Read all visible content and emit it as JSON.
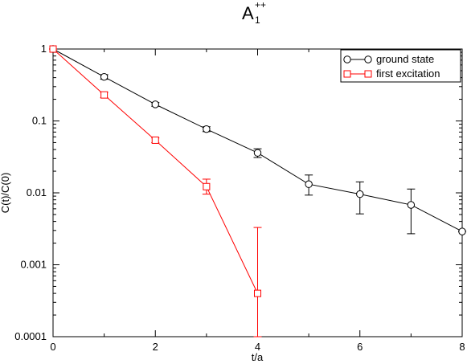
{
  "chart_data": {
    "type": "line",
    "title_main": "A",
    "title_sub": "1",
    "title_sup": "++",
    "xlabel": "t/a",
    "ylabel": "C(t)/C(0)",
    "xlim": [
      0,
      8
    ],
    "ylim": [
      0.0001,
      1
    ],
    "yscale": "log",
    "x_ticks": [
      0,
      2,
      4,
      6,
      8
    ],
    "x_tick_labels": [
      "0",
      "2",
      "4",
      "6",
      "8"
    ],
    "y_ticks": [
      0.0001,
      0.001,
      0.01,
      0.1,
      1
    ],
    "y_tick_labels": [
      "0.0001",
      "0.001",
      "0.01",
      "0.1",
      "1"
    ],
    "legend_position": "top-right",
    "series": [
      {
        "name": "ground state",
        "color": "#000000",
        "marker": "circle",
        "x": [
          0,
          1,
          2,
          3,
          4,
          5,
          6,
          7,
          8
        ],
        "y": [
          1,
          0.41,
          0.17,
          0.077,
          0.036,
          0.0132,
          0.0096,
          0.0068,
          0.0029
        ],
        "yerr_low": [
          1,
          0.38,
          0.16,
          0.071,
          0.031,
          0.0093,
          0.0051,
          0.0027,
          0.0029
        ],
        "yerr_high": [
          1,
          0.44,
          0.18,
          0.083,
          0.041,
          0.0177,
          0.0142,
          0.0113,
          0.0029
        ]
      },
      {
        "name": "first excitation",
        "color": "#ff0000",
        "marker": "square",
        "x": [
          0,
          1,
          2,
          3,
          4
        ],
        "y": [
          1,
          0.23,
          0.054,
          0.0122,
          0.0004
        ],
        "yerr_low": [
          1,
          0.21,
          0.05,
          0.0096,
          0.0001
        ],
        "yerr_high": [
          1,
          0.25,
          0.058,
          0.0155,
          0.0033
        ]
      }
    ]
  }
}
